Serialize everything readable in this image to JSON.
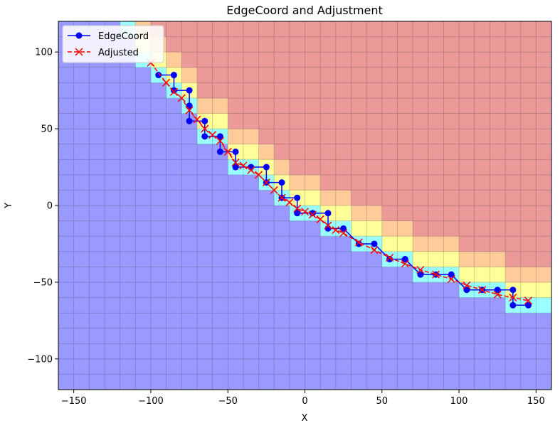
{
  "chart_data": {
    "type": "line",
    "title": "EdgeCoord and Adjustment",
    "xlabel": "X",
    "ylabel": "Y",
    "xlim": [
      -160,
      160
    ],
    "ylim": [
      -120,
      120
    ],
    "xticks": [
      -150,
      -100,
      -50,
      0,
      50,
      100,
      150
    ],
    "yticks": [
      -100,
      -50,
      0,
      50,
      100
    ],
    "xtick_labels": [
      "−150",
      "−100",
      "−50",
      "0",
      "50",
      "100",
      "150"
    ],
    "ytick_labels": [
      "−100",
      "−50",
      "0",
      "50",
      "100"
    ],
    "grid": true,
    "background": {
      "type": "heatmap",
      "cell_size": 10,
      "alpha": 0.4,
      "colors": [
        "#0000ff",
        "#00ffff",
        "#ffff00",
        "#ff8000",
        "#cc0000"
      ]
    },
    "legend": {
      "position": "top-left",
      "entries": [
        "EdgeCoord",
        "Adjusted"
      ]
    },
    "series": [
      {
        "name": "EdgeCoord",
        "color": "#0000ff",
        "marker": "circle",
        "x": [
          -95,
          -85,
          -85,
          -75,
          -75,
          -75,
          -65,
          -65,
          -55,
          -55,
          -45,
          -45,
          -35,
          -25,
          -25,
          -15,
          -15,
          -5,
          -5,
          5,
          15,
          15,
          25,
          35,
          45,
          55,
          65,
          75,
          85,
          95,
          105,
          115,
          125,
          135,
          135,
          145
        ],
        "y": [
          85,
          85,
          75,
          75,
          65,
          55,
          55,
          45,
          45,
          35,
          35,
          25,
          25,
          25,
          15,
          15,
          5,
          5,
          -5,
          -5,
          -5,
          -15,
          -15,
          -25,
          -25,
          -35,
          -35,
          -45,
          -45,
          -45,
          -55,
          -55,
          -55,
          -55,
          -65,
          -65
        ]
      },
      {
        "name": "Adjusted",
        "color": "#ff0000",
        "marker": "x",
        "x": [
          -100,
          -90,
          -85,
          -80,
          -75,
          -70,
          -65,
          -60,
          -55,
          -50,
          -45,
          -40,
          -35,
          -30,
          -25,
          -20,
          -15,
          -10,
          -5,
          0,
          5,
          10,
          15,
          20,
          25,
          35,
          45,
          55,
          65,
          75,
          85,
          95,
          105,
          115,
          125,
          135,
          145
        ],
        "y": [
          93,
          80,
          74,
          70,
          62,
          56,
          50,
          46,
          42,
          35,
          28,
          26,
          23,
          20,
          15,
          10,
          5,
          2,
          -2,
          -4,
          -6,
          -9,
          -13,
          -16,
          -18,
          -24,
          -29,
          -34,
          -38,
          -42,
          -45,
          -48,
          -52,
          -55,
          -58,
          -60,
          -62
        ]
      }
    ]
  }
}
